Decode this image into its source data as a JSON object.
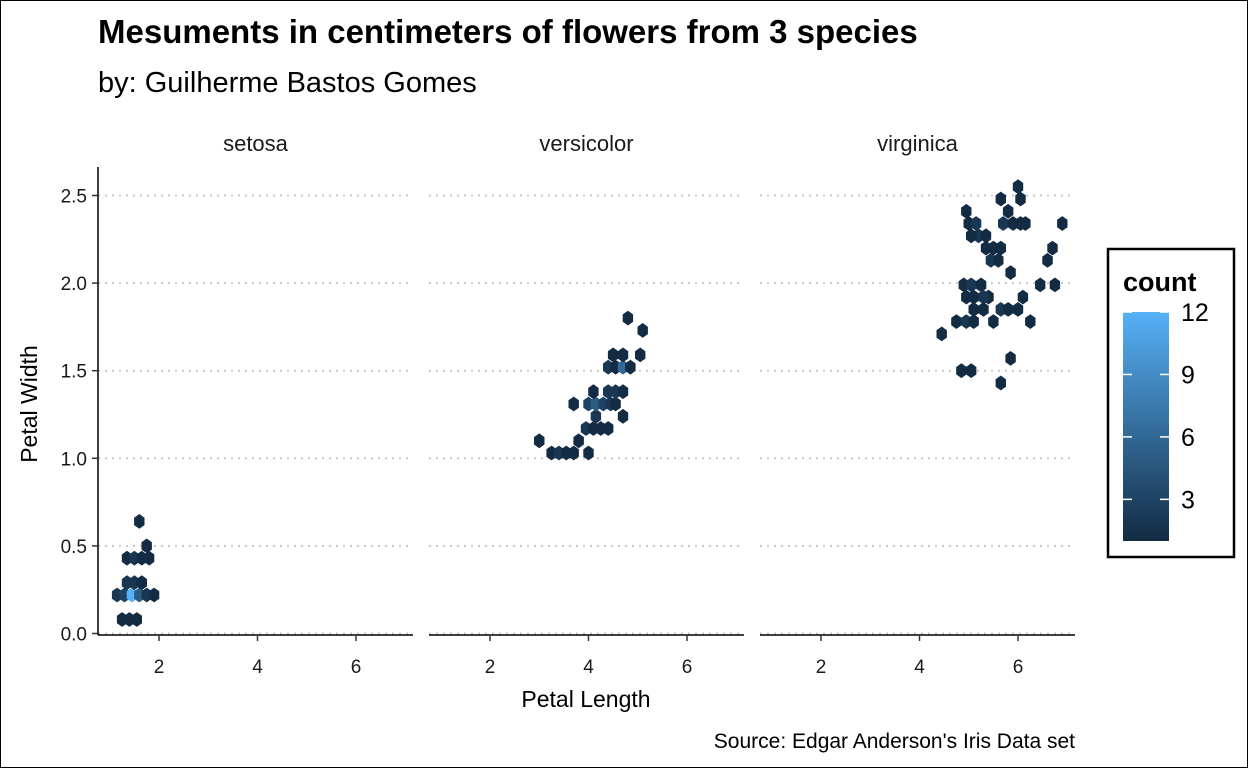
{
  "chart_data": {
    "type": "hexbin",
    "title": "Mesuments in centimeters of flowers from 3 species",
    "subtitle": "by: Guilherme Bastos Gomes",
    "caption": "Source: Edgar Anderson's Iris Data set",
    "xlabel": "Petal Length",
    "ylabel": "Petal Width",
    "xlim": [
      0.95,
      7.1
    ],
    "ylim": [
      -0.02,
      2.65
    ],
    "x_ticks": [
      "2",
      "4",
      "6"
    ],
    "y_ticks": [
      "0.0",
      "0.5",
      "1.0",
      "1.5",
      "2.0",
      "2.5"
    ],
    "grid": "horizontal-dotted",
    "legend": {
      "title": "count",
      "ticks": [
        "3",
        "6",
        "9",
        "12"
      ],
      "range": [
        1,
        12
      ],
      "placement": "right",
      "low_color": "#132B43",
      "high_color": "#56B1F7"
    },
    "panels": [
      {
        "name": "setosa",
        "bins": [
          {
            "x": 1.15,
            "y": 0.22,
            "count": 2
          },
          {
            "x": 1.3,
            "y": 0.22,
            "count": 3
          },
          {
            "x": 1.45,
            "y": 0.22,
            "count": 12
          },
          {
            "x": 1.6,
            "y": 0.22,
            "count": 5
          },
          {
            "x": 1.75,
            "y": 0.22,
            "count": 2
          },
          {
            "x": 1.9,
            "y": 0.22,
            "count": 1
          },
          {
            "x": 1.25,
            "y": 0.08,
            "count": 1
          },
          {
            "x": 1.4,
            "y": 0.08,
            "count": 1
          },
          {
            "x": 1.55,
            "y": 0.08,
            "count": 1
          },
          {
            "x": 1.35,
            "y": 0.29,
            "count": 2
          },
          {
            "x": 1.5,
            "y": 0.29,
            "count": 2
          },
          {
            "x": 1.65,
            "y": 0.29,
            "count": 1
          },
          {
            "x": 1.35,
            "y": 0.43,
            "count": 1
          },
          {
            "x": 1.5,
            "y": 0.43,
            "count": 2
          },
          {
            "x": 1.65,
            "y": 0.43,
            "count": 1
          },
          {
            "x": 1.8,
            "y": 0.43,
            "count": 1
          },
          {
            "x": 1.75,
            "y": 0.5,
            "count": 1
          },
          {
            "x": 1.6,
            "y": 0.64,
            "count": 1
          }
        ]
      },
      {
        "name": "versicolor",
        "bins": [
          {
            "x": 3.0,
            "y": 1.1,
            "count": 1
          },
          {
            "x": 3.25,
            "y": 1.03,
            "count": 1
          },
          {
            "x": 3.4,
            "y": 1.03,
            "count": 2
          },
          {
            "x": 3.55,
            "y": 1.03,
            "count": 1
          },
          {
            "x": 3.7,
            "y": 1.03,
            "count": 1
          },
          {
            "x": 4.0,
            "y": 1.03,
            "count": 1
          },
          {
            "x": 3.8,
            "y": 1.1,
            "count": 1
          },
          {
            "x": 3.95,
            "y": 1.17,
            "count": 2
          },
          {
            "x": 4.1,
            "y": 1.17,
            "count": 1
          },
          {
            "x": 4.25,
            "y": 1.17,
            "count": 1
          },
          {
            "x": 4.4,
            "y": 1.17,
            "count": 1
          },
          {
            "x": 4.15,
            "y": 1.24,
            "count": 2
          },
          {
            "x": 4.7,
            "y": 1.24,
            "count": 1
          },
          {
            "x": 3.7,
            "y": 1.31,
            "count": 1
          },
          {
            "x": 4.0,
            "y": 1.31,
            "count": 3
          },
          {
            "x": 4.15,
            "y": 1.31,
            "count": 5
          },
          {
            "x": 4.3,
            "y": 1.31,
            "count": 3
          },
          {
            "x": 4.45,
            "y": 1.31,
            "count": 2
          },
          {
            "x": 4.55,
            "y": 1.31,
            "count": 1
          },
          {
            "x": 4.1,
            "y": 1.38,
            "count": 1
          },
          {
            "x": 4.4,
            "y": 1.38,
            "count": 2
          },
          {
            "x": 4.55,
            "y": 1.38,
            "count": 2
          },
          {
            "x": 4.7,
            "y": 1.38,
            "count": 1
          },
          {
            "x": 4.4,
            "y": 1.52,
            "count": 2
          },
          {
            "x": 4.55,
            "y": 1.52,
            "count": 1
          },
          {
            "x": 4.7,
            "y": 1.52,
            "count": 6
          },
          {
            "x": 4.85,
            "y": 1.52,
            "count": 1
          },
          {
            "x": 4.5,
            "y": 1.59,
            "count": 1
          },
          {
            "x": 4.7,
            "y": 1.59,
            "count": 1
          },
          {
            "x": 5.05,
            "y": 1.59,
            "count": 1
          },
          {
            "x": 4.8,
            "y": 1.8,
            "count": 1
          },
          {
            "x": 5.1,
            "y": 1.73,
            "count": 1
          }
        ]
      },
      {
        "name": "virginica",
        "bins": [
          {
            "x": 4.45,
            "y": 1.71,
            "count": 1
          },
          {
            "x": 4.85,
            "y": 1.5,
            "count": 1
          },
          {
            "x": 5.05,
            "y": 1.5,
            "count": 1
          },
          {
            "x": 5.65,
            "y": 1.43,
            "count": 1
          },
          {
            "x": 5.85,
            "y": 1.57,
            "count": 1
          },
          {
            "x": 4.75,
            "y": 1.78,
            "count": 1
          },
          {
            "x": 4.95,
            "y": 1.78,
            "count": 2
          },
          {
            "x": 5.1,
            "y": 1.78,
            "count": 1
          },
          {
            "x": 5.5,
            "y": 1.78,
            "count": 1
          },
          {
            "x": 5.65,
            "y": 1.85,
            "count": 2
          },
          {
            "x": 5.8,
            "y": 1.85,
            "count": 1
          },
          {
            "x": 6.0,
            "y": 1.85,
            "count": 1
          },
          {
            "x": 6.25,
            "y": 1.78,
            "count": 1
          },
          {
            "x": 6.1,
            "y": 1.92,
            "count": 1
          },
          {
            "x": 4.9,
            "y": 1.99,
            "count": 1
          },
          {
            "x": 5.05,
            "y": 1.99,
            "count": 2
          },
          {
            "x": 5.25,
            "y": 1.99,
            "count": 1
          },
          {
            "x": 5.4,
            "y": 1.92,
            "count": 1
          },
          {
            "x": 4.95,
            "y": 1.92,
            "count": 1
          },
          {
            "x": 5.1,
            "y": 1.92,
            "count": 1
          },
          {
            "x": 5.3,
            "y": 1.92,
            "count": 2
          },
          {
            "x": 5.1,
            "y": 1.85,
            "count": 1
          },
          {
            "x": 5.3,
            "y": 1.85,
            "count": 1
          },
          {
            "x": 6.45,
            "y": 1.99,
            "count": 1
          },
          {
            "x": 6.75,
            "y": 1.99,
            "count": 1
          },
          {
            "x": 5.85,
            "y": 2.06,
            "count": 1
          },
          {
            "x": 6.6,
            "y": 2.13,
            "count": 1
          },
          {
            "x": 6.7,
            "y": 2.2,
            "count": 1
          },
          {
            "x": 5.45,
            "y": 2.13,
            "count": 2
          },
          {
            "x": 5.6,
            "y": 2.13,
            "count": 1
          },
          {
            "x": 5.35,
            "y": 2.2,
            "count": 1
          },
          {
            "x": 5.5,
            "y": 2.2,
            "count": 1
          },
          {
            "x": 5.65,
            "y": 2.2,
            "count": 1
          },
          {
            "x": 5.2,
            "y": 2.27,
            "count": 2
          },
          {
            "x": 5.35,
            "y": 2.27,
            "count": 1
          },
          {
            "x": 5.0,
            "y": 2.34,
            "count": 1
          },
          {
            "x": 5.15,
            "y": 2.34,
            "count": 2
          },
          {
            "x": 5.7,
            "y": 2.34,
            "count": 2
          },
          {
            "x": 5.9,
            "y": 2.34,
            "count": 1
          },
          {
            "x": 6.05,
            "y": 2.34,
            "count": 1
          },
          {
            "x": 6.15,
            "y": 2.34,
            "count": 1
          },
          {
            "x": 6.9,
            "y": 2.34,
            "count": 1
          },
          {
            "x": 5.05,
            "y": 2.27,
            "count": 1
          },
          {
            "x": 5.8,
            "y": 2.41,
            "count": 1
          },
          {
            "x": 4.95,
            "y": 2.41,
            "count": 1
          },
          {
            "x": 5.65,
            "y": 2.48,
            "count": 1
          },
          {
            "x": 6.05,
            "y": 2.48,
            "count": 1
          },
          {
            "x": 6.0,
            "y": 2.55,
            "count": 1
          }
        ]
      }
    ]
  }
}
